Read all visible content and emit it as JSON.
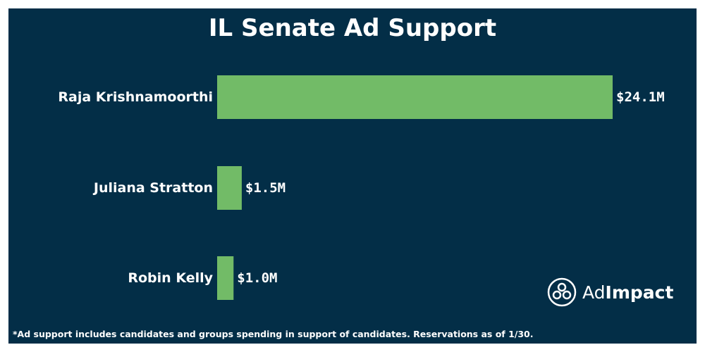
{
  "title": "IL Senate Ad Support",
  "footnote": "*Ad support includes candidates and groups spending in support of candidates. Reservations as of 1/30.",
  "brand": {
    "part1": "Ad",
    "part2": "Impact"
  },
  "colors": {
    "background": "#032e47",
    "bar": "#72bb67",
    "text": "#ffffff"
  },
  "chart_data": {
    "type": "bar",
    "orientation": "horizontal",
    "title": "IL Senate Ad Support",
    "categories": [
      "Raja Krishnamoorthi",
      "Juliana Stratton",
      "Robin Kelly"
    ],
    "values": [
      24.1,
      1.5,
      1.0
    ],
    "value_labels": [
      "$24.1M",
      "$1.5M",
      "$1.0M"
    ],
    "unit": "$M",
    "xlim": [
      0,
      24.1
    ],
    "grid": false,
    "legend": "none"
  }
}
